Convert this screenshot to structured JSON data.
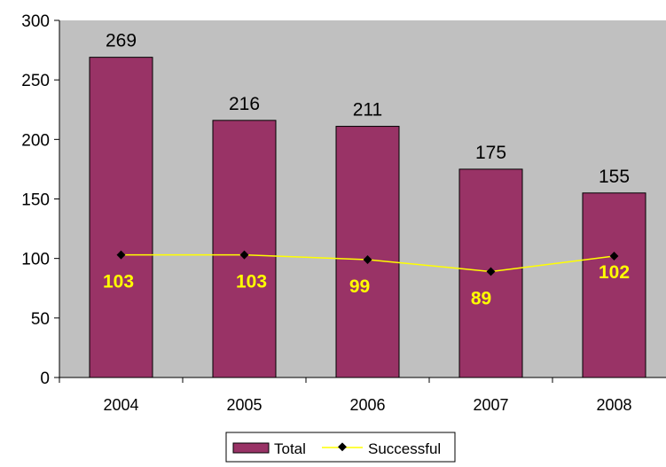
{
  "chart_data": {
    "type": "bar",
    "categories": [
      "2004",
      "2005",
      "2006",
      "2007",
      "2008"
    ],
    "series": [
      {
        "name": "Total",
        "kind": "bar",
        "values": [
          269,
          216,
          211,
          175,
          155
        ]
      },
      {
        "name": "Successful",
        "kind": "line",
        "values": [
          103,
          103,
          99,
          89,
          102
        ]
      }
    ],
    "title": "",
    "xlabel": "",
    "ylabel": "",
    "ylim": [
      0,
      300
    ],
    "yticks": [
      "0",
      "50",
      "100",
      "150",
      "200",
      "250",
      "300"
    ],
    "grid": false,
    "legend": "bottom",
    "colors": {
      "plot_background": "#c0c0c0",
      "bar_fill": "#993366",
      "line": "#ffff00",
      "marker": "#000000",
      "line_label": "#ffff00"
    }
  }
}
